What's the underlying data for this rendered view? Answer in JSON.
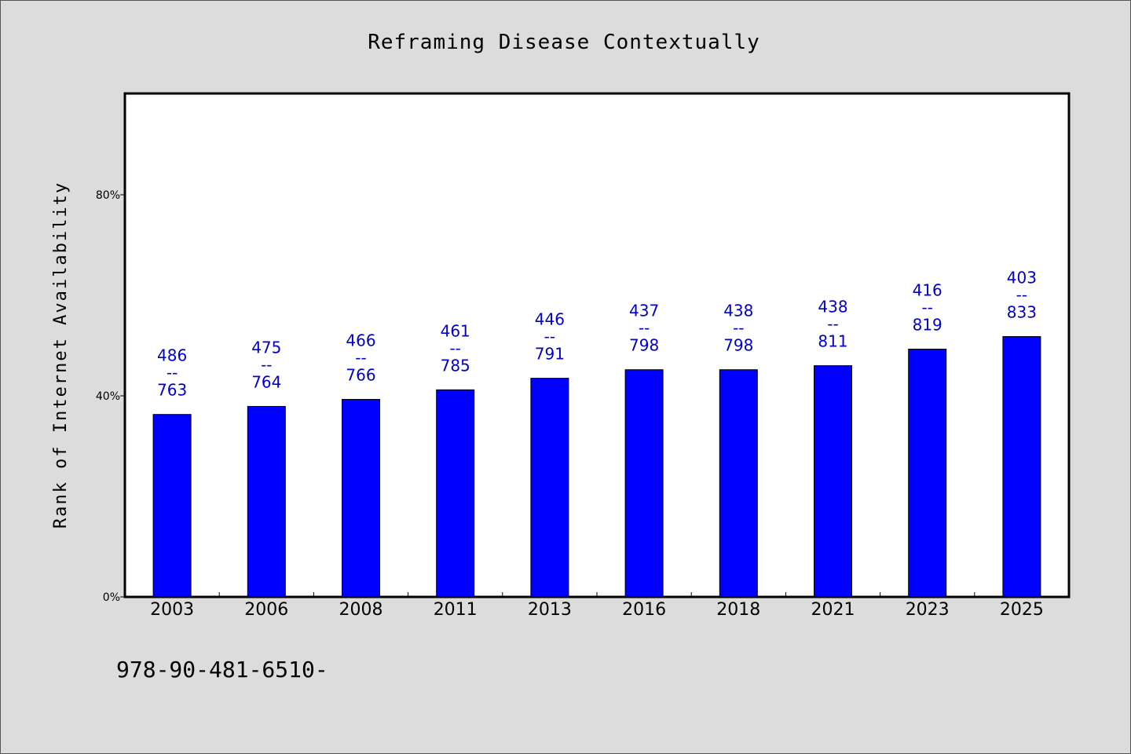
{
  "chart_data": {
    "type": "bar",
    "title": "Reframing Disease Contextually",
    "xlabel": "",
    "ylabel": "Rank of Internet Availability",
    "categories": [
      "2003",
      "2006",
      "2008",
      "2011",
      "2013",
      "2016",
      "2018",
      "2021",
      "2023",
      "2025"
    ],
    "values": [
      36.3,
      37.9,
      39.3,
      41.2,
      43.5,
      45.2,
      45.2,
      46.0,
      49.3,
      51.8
    ],
    "ylim": [
      0,
      100
    ],
    "yticks": [
      {
        "value": 0,
        "label": "0%"
      },
      {
        "value": 40,
        "label": "40%"
      },
      {
        "value": 80,
        "label": "80%"
      }
    ],
    "data_labels": [
      {
        "top": "486",
        "sep": "--",
        "bottom": "763"
      },
      {
        "top": "475",
        "sep": "--",
        "bottom": "764"
      },
      {
        "top": "466",
        "sep": "--",
        "bottom": "766"
      },
      {
        "top": "461",
        "sep": "--",
        "bottom": "785"
      },
      {
        "top": "446",
        "sep": "--",
        "bottom": "791"
      },
      {
        "top": "437",
        "sep": "--",
        "bottom": "798"
      },
      {
        "top": "438",
        "sep": "--",
        "bottom": "798"
      },
      {
        "top": "438",
        "sep": "--",
        "bottom": "811"
      },
      {
        "top": "416",
        "sep": "--",
        "bottom": "819"
      },
      {
        "top": "403",
        "sep": "--",
        "bottom": "833"
      }
    ],
    "grid": false,
    "bar_color": "#0000ff",
    "label_color": "#0000cc"
  },
  "footer_text": "978-90-481-6510-"
}
